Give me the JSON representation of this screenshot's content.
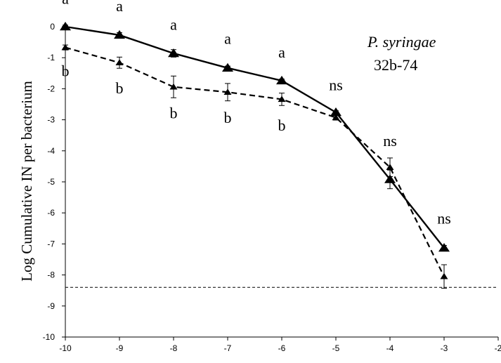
{
  "chart_data": {
    "type": "line",
    "title": "",
    "xlabel": "",
    "ylabel": "Log Cumulative IN per bacterium",
    "xlim": [
      -10,
      -2
    ],
    "ylim": [
      -10,
      0
    ],
    "xticks": [
      "-10",
      "-9",
      "-8",
      "-7",
      "-6",
      "-5",
      "-4",
      "-3",
      "-2"
    ],
    "yticks": [
      "0",
      "-1",
      "-2",
      "-3",
      "-4",
      "-5",
      "-6",
      "-7",
      "-8",
      "-9",
      "-10"
    ],
    "legend_text": {
      "species": "P. syringae",
      "strain": "32b-74"
    },
    "series": [
      {
        "style": "solid",
        "marker": "triangle-large",
        "x": [
          -10,
          -9,
          -8,
          -7,
          -6,
          -5,
          -4,
          -3
        ],
        "y": [
          0.0,
          -0.27,
          -0.86,
          -1.33,
          -1.74,
          -2.76,
          -4.92,
          -7.13
        ],
        "err": [
          0.05,
          0.08,
          0.12,
          0.06,
          0.05,
          0.05,
          0.3,
          0.08
        ]
      },
      {
        "style": "dashed",
        "marker": "triangle-small",
        "x": [
          -10,
          -9,
          -8,
          -7,
          -6,
          -5,
          -4,
          -3
        ],
        "y": [
          -0.67,
          -1.16,
          -1.94,
          -2.11,
          -2.34,
          -2.93,
          -4.53,
          -8.05
        ],
        "err": [
          0.08,
          0.18,
          0.35,
          0.28,
          0.2,
          0.08,
          0.3,
          0.38
        ]
      }
    ],
    "annotations": [
      {
        "text": "a",
        "x": -10,
        "y": 0.73
      },
      {
        "text": "a",
        "x": -9,
        "y": 0.5
      },
      {
        "text": "a",
        "x": -8,
        "y": -0.1
      },
      {
        "text": "a",
        "x": -7,
        "y": -0.55
      },
      {
        "text": "a",
        "x": -6,
        "y": -1.0
      },
      {
        "text": "b",
        "x": -10,
        "y": -1.6
      },
      {
        "text": "b",
        "x": -9,
        "y": -2.15
      },
      {
        "text": "b",
        "x": -8,
        "y": -2.95
      },
      {
        "text": "b",
        "x": -7,
        "y": -3.1
      },
      {
        "text": "b",
        "x": -6,
        "y": -3.35
      },
      {
        "text": "ns",
        "x": -5,
        "y": -2.05
      },
      {
        "text": "ns",
        "x": -4,
        "y": -3.85
      },
      {
        "text": "ns",
        "x": -3,
        "y": -6.35
      }
    ],
    "reference_line": {
      "y": -8.4,
      "style": "dashed"
    },
    "grid": false
  }
}
